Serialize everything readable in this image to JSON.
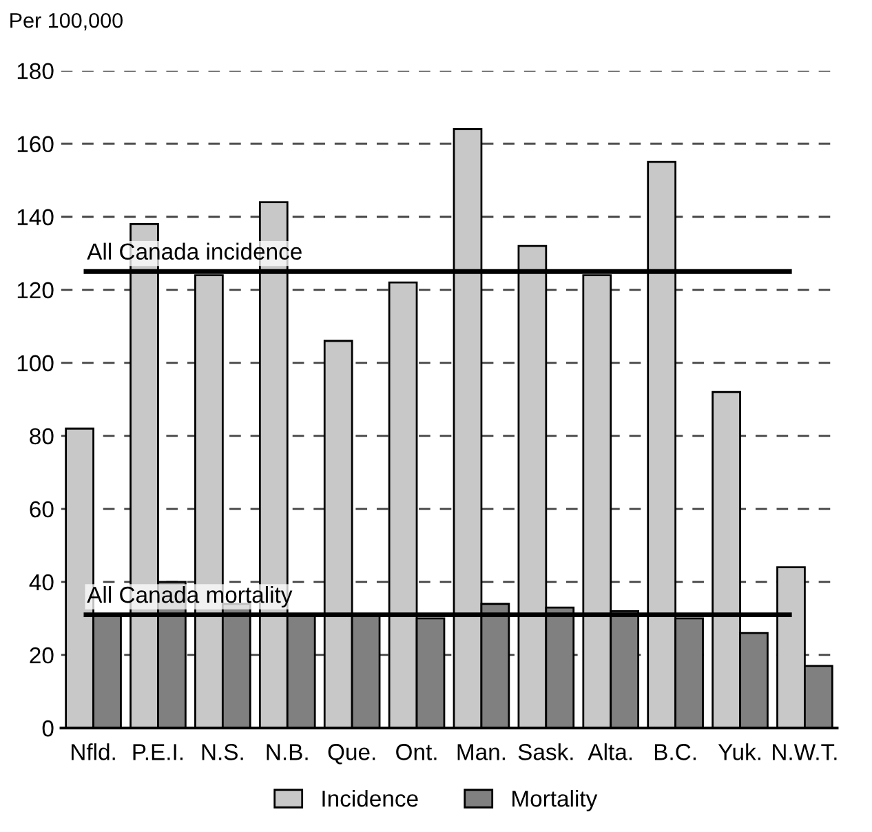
{
  "chart_data": {
    "type": "bar",
    "ylabel": "Per 100,000",
    "categories": [
      "Nfld.",
      "P.E.I.",
      "N.S.",
      "N.B.",
      "Que.",
      "Ont.",
      "Man.",
      "Sask.",
      "Alta.",
      "B.C.",
      "Yuk.",
      "N.W.T."
    ],
    "series": [
      {
        "name": "Incidence",
        "color": "#c8c8c8",
        "values": [
          82,
          138,
          124,
          144,
          106,
          122,
          164,
          132,
          124,
          155,
          92,
          44
        ]
      },
      {
        "name": "Mortality",
        "color": "#808080",
        "values": [
          31,
          40,
          34,
          31,
          31,
          30,
          34,
          33,
          32,
          30,
          26,
          17
        ]
      }
    ],
    "ylim": [
      0,
      180
    ],
    "yticks": [
      0,
      20,
      40,
      60,
      80,
      100,
      120,
      140,
      160,
      180
    ],
    "ref_lines": [
      {
        "axis": "y",
        "value": 125,
        "label": "All Canada incidence",
        "color": "#000000"
      },
      {
        "axis": "y",
        "value": 31,
        "label": "All Canada mortality",
        "color": "#000000"
      }
    ],
    "grid": "y",
    "legend": "bottom"
  }
}
